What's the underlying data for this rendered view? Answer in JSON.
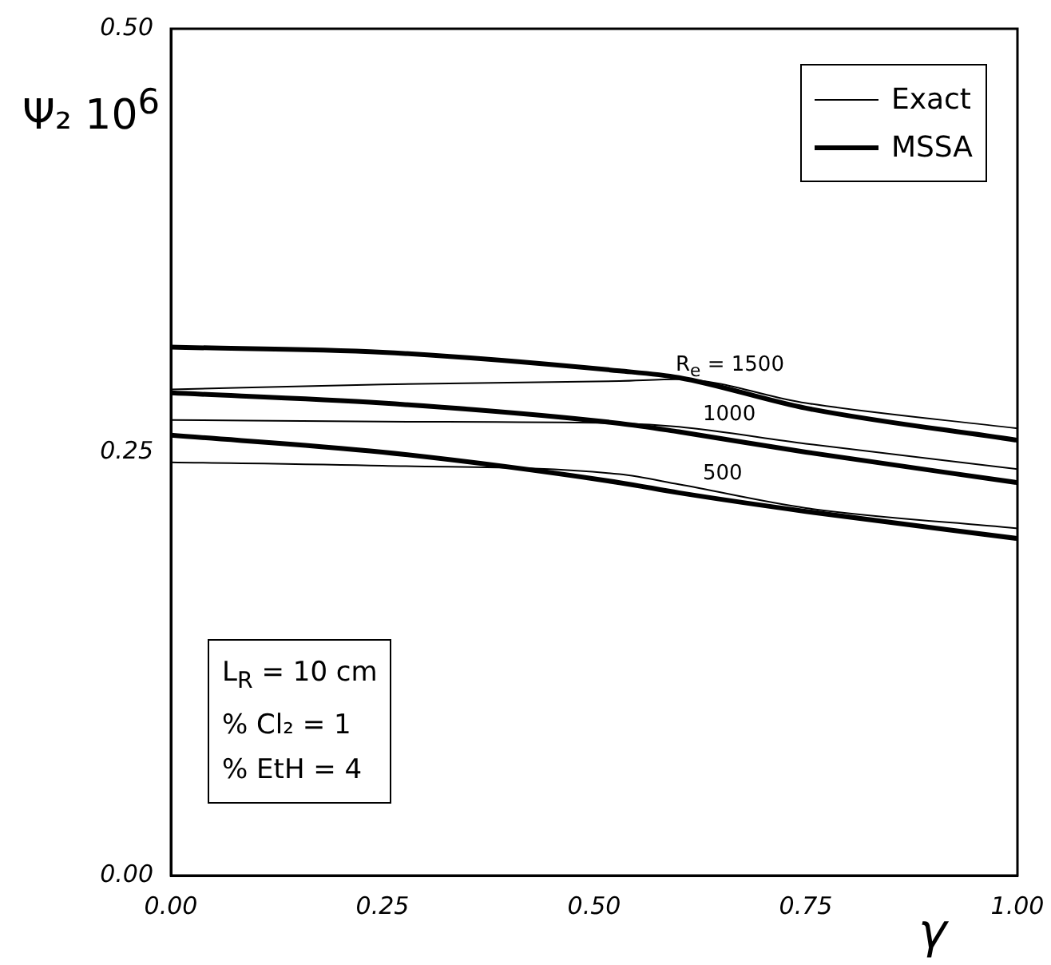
{
  "chart_data": {
    "type": "line",
    "xlabel": "γ",
    "ylabel": "Ψ₂ 10$^{6}$",
    "x": [
      0,
      0.25,
      0.53,
      0.6,
      0.75,
      1
    ],
    "xlim": [
      0,
      1
    ],
    "ylim": [
      0,
      0.5
    ],
    "xticks": [
      {
        "value": 0,
        "label": "0.00"
      },
      {
        "value": 0.25,
        "label": "0.25"
      },
      {
        "value": 0.5,
        "label": "0.50"
      },
      {
        "value": 0.75,
        "label": "0.75"
      },
      {
        "value": 1,
        "label": "1.00"
      }
    ],
    "yticks": [
      {
        "value": 0,
        "label": "0.00"
      },
      {
        "value": 0.25,
        "label": "0.25"
      },
      {
        "value": 0.5,
        "label": "0.50"
      }
    ],
    "series": [
      {
        "name": "Exact",
        "color": "#000000",
        "values": [
          0.287,
          0.29,
          0.292,
          0.293,
          0.279,
          0.264
        ]
      },
      {
        "name": "MSSA",
        "color": "#000000",
        "values": [
          0.312,
          0.309,
          0.298,
          0.294,
          0.276,
          0.257
        ]
      },
      {
        "color": "#000000",
        "values": [
          0.269,
          0.268,
          0.267,
          0.265,
          0.255,
          0.24
        ]
      },
      {
        "color": "#000000",
        "values": [
          0.285,
          0.279,
          0.267,
          0.262,
          0.25,
          0.232
        ]
      },
      {
        "color": "#000000",
        "values": [
          0.244,
          0.242,
          0.237,
          0.231,
          0.217,
          0.205
        ]
      },
      {
        "color": "#000000",
        "values": [
          0.26,
          0.25,
          0.232,
          0.226,
          0.215,
          0.199
        ]
      }
    ],
    "annotations": [
      "R$_{e}$ = 1500",
      "1000",
      "500",
      "L$_{R}$ = 10 cm",
      "% Cl₂ = 1",
      "% EtH = 4"
    ],
    "legend": "top right",
    "grid": false,
    "marker": "none",
    "line_style": "solid"
  }
}
